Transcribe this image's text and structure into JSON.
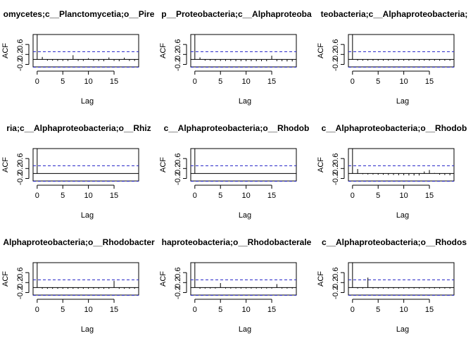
{
  "chart_data": [
    {
      "type": "bar",
      "title": "omycetes;c__Planctomycetia;o__Pire",
      "xlabel": "Lag",
      "ylabel": "ACF",
      "xlim": [
        -0.8,
        19.8
      ],
      "ylim": [
        -0.3,
        1.0
      ],
      "xticks": [
        0,
        5,
        10,
        15
      ],
      "yticks": [
        -0.2,
        0.2,
        0.6
      ],
      "ci": 0.31,
      "lags": [
        0,
        1,
        2,
        3,
        4,
        5,
        6,
        7,
        8,
        9,
        10,
        11,
        12,
        13,
        14,
        15,
        16,
        17,
        18,
        19
      ],
      "acf": [
        1.0,
        0.1,
        -0.05,
        -0.05,
        -0.06,
        -0.06,
        -0.06,
        0.17,
        -0.06,
        -0.06,
        0.05,
        -0.06,
        -0.06,
        -0.07,
        0.08,
        -0.06,
        -0.07,
        0.07,
        -0.06,
        -0.06
      ]
    },
    {
      "type": "bar",
      "title": "p__Proteobacteria;c__Alphaproteoba",
      "xlabel": "Lag",
      "ylabel": "ACF",
      "xlim": [
        -0.8,
        19.8
      ],
      "ylim": [
        -0.3,
        1.0
      ],
      "xticks": [
        0,
        5,
        10,
        15
      ],
      "yticks": [
        -0.2,
        0.2,
        0.6
      ],
      "ci": 0.31,
      "lags": [
        0,
        1,
        2,
        3,
        4,
        5,
        6,
        7,
        8,
        9,
        10,
        11,
        12,
        13,
        14,
        15,
        16,
        17,
        18,
        19
      ],
      "acf": [
        1.0,
        0.08,
        -0.05,
        -0.05,
        -0.06,
        -0.06,
        -0.06,
        -0.06,
        -0.07,
        -0.07,
        -0.07,
        -0.07,
        -0.07,
        -0.07,
        -0.07,
        0.15,
        -0.07,
        -0.07,
        -0.08,
        -0.08
      ]
    },
    {
      "type": "bar",
      "title": "teobacteria;c__Alphaproteobacteria;",
      "xlabel": "Lag",
      "ylabel": "ACF",
      "xlim": [
        -0.8,
        19.8
      ],
      "ylim": [
        -0.3,
        1.0
      ],
      "xticks": [
        0,
        5,
        10,
        15
      ],
      "yticks": [
        -0.2,
        0.2,
        0.6
      ],
      "ci": 0.31,
      "lags": [
        0,
        1,
        2,
        3,
        4,
        5,
        6,
        7,
        8,
        9,
        10,
        11,
        12,
        13,
        14,
        15,
        16,
        17,
        18,
        19
      ],
      "acf": [
        1.0,
        -0.05,
        -0.05,
        -0.05,
        -0.05,
        -0.05,
        -0.05,
        -0.05,
        -0.05,
        -0.05,
        -0.05,
        -0.05,
        -0.05,
        -0.05,
        -0.05,
        -0.05,
        -0.05,
        -0.05,
        -0.05,
        -0.05
      ]
    },
    {
      "type": "bar",
      "title": "ria;c__Alphaproteobacteria;o__Rhiz",
      "xlabel": "Lag",
      "ylabel": "ACF",
      "xlim": [
        -0.8,
        19.8
      ],
      "ylim": [
        -0.3,
        1.0
      ],
      "xticks": [
        0,
        5,
        10,
        15
      ],
      "yticks": [
        -0.2,
        0.2,
        0.6
      ],
      "ci": 0.31,
      "lags": [
        0,
        1,
        2,
        3,
        4,
        5,
        6,
        7,
        8,
        9,
        10,
        11,
        12,
        13,
        14,
        15,
        16,
        17,
        18,
        19
      ],
      "acf": [
        1.0,
        0,
        0,
        0,
        0,
        0,
        0,
        0,
        0,
        0,
        0,
        0,
        0,
        0,
        0,
        0,
        0,
        0,
        0,
        0
      ]
    },
    {
      "type": "bar",
      "title": "c__Alphaproteobacteria;o__Rhodob",
      "xlabel": "Lag",
      "ylabel": "ACF",
      "xlim": [
        -0.8,
        19.8
      ],
      "ylim": [
        -0.3,
        1.0
      ],
      "xticks": [
        0,
        5,
        10,
        15
      ],
      "yticks": [
        -0.2,
        0.2,
        0.6
      ],
      "ci": 0.31,
      "lags": [
        0,
        1,
        2,
        3,
        4,
        5,
        6,
        7,
        8,
        9,
        10,
        11,
        12,
        13,
        14,
        15,
        16,
        17,
        18,
        19
      ],
      "acf": [
        1.0,
        0,
        0,
        0,
        0,
        0,
        0,
        0,
        0,
        0,
        0,
        0,
        0,
        0,
        0,
        0,
        0,
        0,
        0,
        0
      ]
    },
    {
      "type": "bar",
      "title": "c__Alphaproteobacteria;o__Rhodob",
      "xlabel": "Lag",
      "ylabel": "ACF",
      "xlim": [
        -0.8,
        19.8
      ],
      "ylim": [
        -0.3,
        1.0
      ],
      "xticks": [
        0,
        5,
        10,
        15
      ],
      "yticks": [
        -0.2,
        0.2,
        0.6
      ],
      "ci": 0.31,
      "lags": [
        0,
        1,
        2,
        3,
        4,
        5,
        6,
        7,
        8,
        9,
        10,
        11,
        12,
        13,
        14,
        15,
        16,
        17,
        18,
        19
      ],
      "acf": [
        1.0,
        0.18,
        -0.03,
        -0.04,
        -0.04,
        -0.05,
        -0.05,
        -0.06,
        -0.06,
        -0.07,
        -0.07,
        -0.08,
        -0.08,
        -0.08,
        0.08,
        0.14,
        0.02,
        -0.05,
        -0.06,
        -0.07
      ]
    },
    {
      "type": "bar",
      "title": "Alphaproteobacteria;o__Rhodobacter",
      "xlabel": "Lag",
      "ylabel": "ACF",
      "xlim": [
        -0.8,
        19.8
      ],
      "ylim": [
        -0.3,
        1.0
      ],
      "xticks": [
        0,
        5,
        10,
        15
      ],
      "yticks": [
        -0.2,
        0.2,
        0.6
      ],
      "ci": 0.31,
      "lags": [
        0,
        1,
        2,
        3,
        4,
        5,
        6,
        7,
        8,
        9,
        10,
        11,
        12,
        13,
        14,
        15,
        16,
        17,
        18,
        19
      ],
      "acf": [
        1.0,
        -0.05,
        -0.05,
        -0.05,
        -0.05,
        -0.05,
        -0.05,
        -0.05,
        -0.05,
        -0.05,
        -0.05,
        -0.05,
        -0.05,
        -0.05,
        -0.05,
        0.27,
        -0.05,
        -0.05,
        -0.05,
        -0.05
      ]
    },
    {
      "type": "bar",
      "title": "haproteobacteria;o__Rhodobacterale",
      "xlabel": "Lag",
      "ylabel": "ACF",
      "xlim": [
        -0.8,
        19.8
      ],
      "ylim": [
        -0.3,
        1.0
      ],
      "xticks": [
        0,
        5,
        10,
        15
      ],
      "yticks": [
        -0.2,
        0.2,
        0.6
      ],
      "ci": 0.31,
      "lags": [
        0,
        1,
        2,
        3,
        4,
        5,
        6,
        7,
        8,
        9,
        10,
        11,
        12,
        13,
        14,
        15,
        16,
        17,
        18,
        19
      ],
      "acf": [
        1.0,
        -0.05,
        -0.04,
        -0.04,
        -0.04,
        0.18,
        -0.04,
        -0.04,
        -0.04,
        -0.04,
        -0.04,
        -0.04,
        -0.04,
        -0.04,
        -0.04,
        -0.04,
        0.14,
        -0.04,
        -0.04,
        -0.04
      ]
    },
    {
      "type": "bar",
      "title": "c__Alphaproteobacteria;o__Rhodos",
      "xlabel": "Lag",
      "ylabel": "ACF",
      "xlim": [
        -0.8,
        19.8
      ],
      "ylim": [
        -0.3,
        1.0
      ],
      "xticks": [
        0,
        5,
        10,
        15
      ],
      "yticks": [
        -0.2,
        0.2,
        0.6
      ],
      "ci": 0.31,
      "lags": [
        0,
        1,
        2,
        3,
        4,
        5,
        6,
        7,
        8,
        9,
        10,
        11,
        12,
        13,
        14,
        15,
        16,
        17,
        18,
        19
      ],
      "acf": [
        1.0,
        -0.04,
        -0.04,
        0.4,
        -0.04,
        -0.04,
        -0.04,
        -0.04,
        -0.04,
        -0.04,
        -0.04,
        -0.04,
        -0.04,
        -0.04,
        -0.04,
        -0.04,
        -0.04,
        -0.04,
        -0.04,
        -0.04
      ]
    }
  ]
}
